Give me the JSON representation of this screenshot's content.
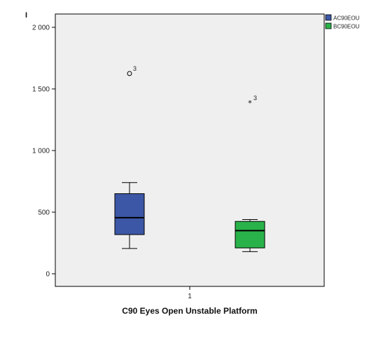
{
  "chart_data": {
    "type": "boxplot",
    "title": "",
    "axis_corner_label": "I",
    "xlabel": "C90 Eyes Open Unstable Platform",
    "ylabel": "",
    "ylim": [
      -100,
      2100
    ],
    "yticks": [
      0,
      500,
      1000,
      1500,
      2000
    ],
    "ytick_labels": [
      "0",
      "500",
      "1 000",
      "1 500",
      "2 000"
    ],
    "categories": [
      "1"
    ],
    "grid": false,
    "legend_position": "top-right",
    "plot_background": "#efefef",
    "series": [
      {
        "name": "AC90EOU",
        "color": "#3c57a5",
        "min": 205,
        "q1": 318,
        "median": 455,
        "q3": 650,
        "max": 740,
        "outliers": [
          {
            "value": 1625,
            "label": "3",
            "marker": "circle"
          }
        ]
      },
      {
        "name": "BC90EOU",
        "color": "#2ab24a",
        "min": 180,
        "q1": 210,
        "median": 350,
        "q3": 425,
        "max": 440,
        "outliers": [
          {
            "value": 1385,
            "label": "3",
            "marker": "star"
          }
        ]
      }
    ]
  }
}
